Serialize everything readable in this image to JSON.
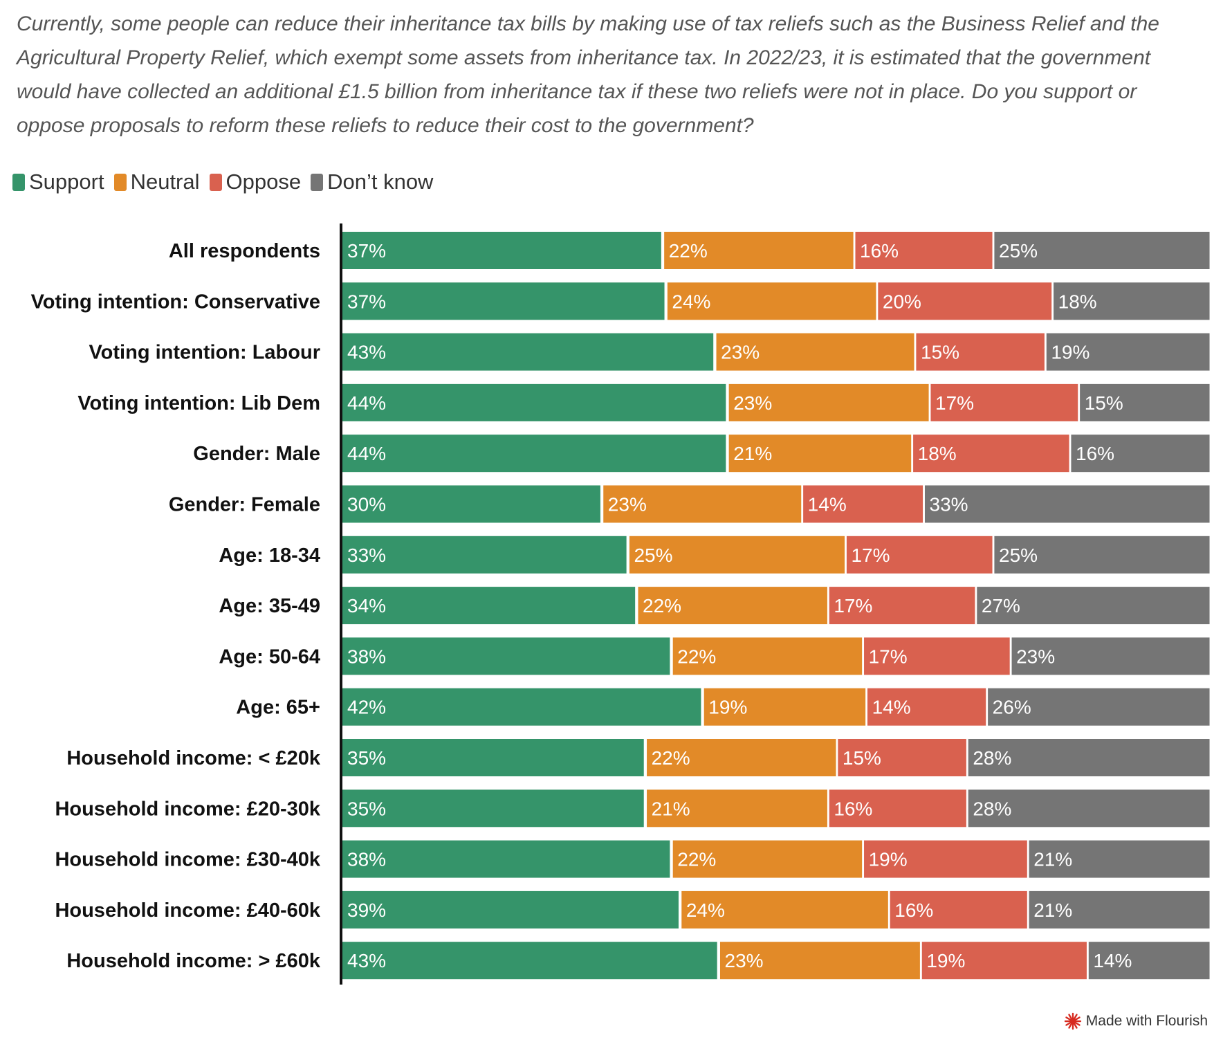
{
  "chart_data": {
    "type": "bar",
    "orientation": "horizontal",
    "stacked": true,
    "subtitle": "Currently, some people can reduce their inheritance tax bills by making use of tax reliefs such as the Business Relief and the Agricultural Property Relief, which exempt some assets from inheritance tax. In 2022/23, it is estimated that the government would have collected an additional £1.5 billion from inheritance tax if these two reliefs were not in place. Do you support or oppose proposals to reform these reliefs to reduce their cost to the government?",
    "legend_position": "top-left",
    "grid": false,
    "xlim": [
      0,
      100
    ],
    "value_suffix": "%",
    "categories": [
      "All respondents",
      "Voting intention: Conservative",
      "Voting intention: Labour",
      "Voting intention: Lib Dem",
      "Gender: Male",
      "Gender: Female",
      "Age: 18-34",
      "Age: 35-49",
      "Age: 50-64",
      "Age: 65+",
      "Household income: < £20k",
      "Household income: £20-30k",
      "Household income: £30-40k",
      "Household income: £40-60k",
      "Household income: > £60k"
    ],
    "series": [
      {
        "name": "Support",
        "color": "#35946a",
        "values": [
          37,
          37,
          43,
          44,
          44,
          30,
          33,
          34,
          38,
          42,
          35,
          35,
          38,
          39,
          43
        ]
      },
      {
        "name": "Neutral",
        "color": "#e28a28",
        "values": [
          22,
          24,
          23,
          23,
          21,
          23,
          25,
          22,
          22,
          19,
          22,
          21,
          22,
          24,
          23
        ]
      },
      {
        "name": "Oppose",
        "color": "#d9614f",
        "values": [
          16,
          20,
          15,
          17,
          18,
          14,
          17,
          17,
          17,
          14,
          15,
          16,
          19,
          16,
          19
        ]
      },
      {
        "name": "Don’t know",
        "color": "#757575",
        "values": [
          25,
          18,
          19,
          15,
          16,
          33,
          25,
          27,
          23,
          26,
          28,
          28,
          21,
          21,
          14
        ]
      }
    ]
  },
  "footer": {
    "text": "Made with Flourish",
    "logo_icon": "flourish-starburst-icon",
    "logo_color": "#d72b20"
  }
}
